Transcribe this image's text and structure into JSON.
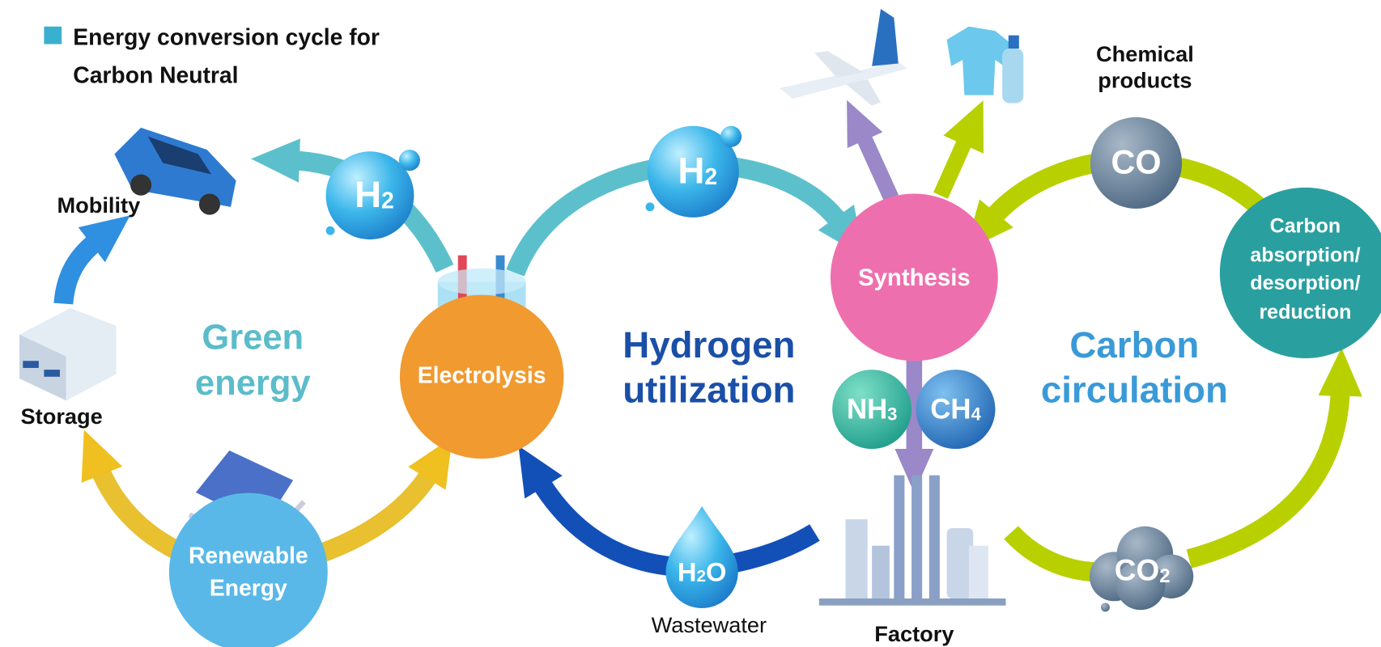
{
  "title": [
    "Energy conversion cycle for",
    "Carbon Neutral"
  ],
  "sections": [
    {
      "lines": [
        "Green",
        "energy"
      ]
    },
    {
      "lines": [
        "Hydrogen",
        "utilization"
      ]
    },
    {
      "lines": [
        "Carbon",
        "circulation"
      ]
    }
  ],
  "nodes": [
    {
      "lines": [
        "Renewable",
        "Energy"
      ]
    },
    {
      "lines": [
        "Electrolysis"
      ]
    },
    {
      "lines": [
        "Synthesis"
      ]
    },
    {
      "lines": [
        "Carbon",
        "absorption/",
        "desorption/",
        "reduction"
      ]
    }
  ],
  "labels": [
    {
      "lines": [
        "Mobility"
      ]
    },
    {
      "lines": [
        "Storage"
      ]
    },
    {
      "lines": [
        "Wastewater"
      ]
    },
    {
      "lines": [
        "Factory"
      ]
    },
    {
      "lines": [
        "Chemical",
        "products"
      ]
    }
  ],
  "molecules": [
    {
      "base": "H",
      "sub": "2"
    },
    {
      "base": "H",
      "sub": "2"
    },
    {
      "base": "H",
      "sub": "2",
      "tail": "O"
    },
    {
      "base": "NH",
      "sub": "3"
    },
    {
      "base": "CH",
      "sub": "4"
    },
    {
      "base": "CO"
    },
    {
      "base": "CO",
      "sub": "2"
    }
  ]
}
